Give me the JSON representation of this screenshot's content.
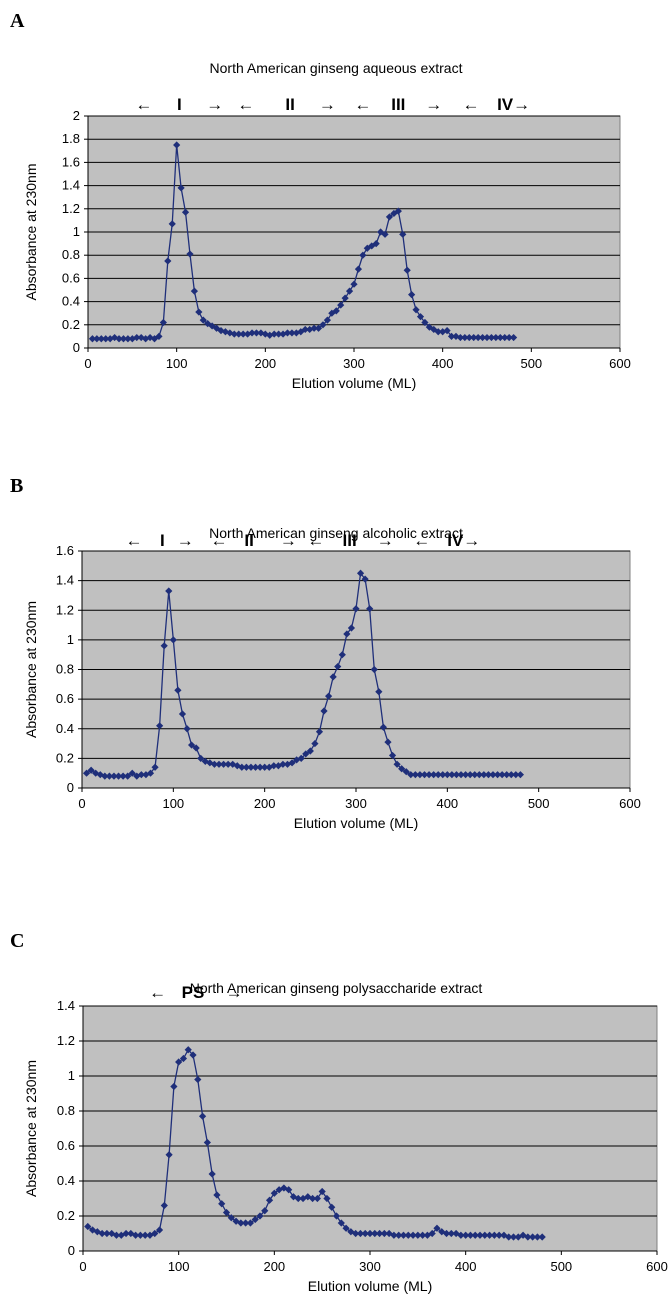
{
  "chart_data": [
    {
      "panel_letter": "A",
      "type": "line",
      "title": "North American ginseng aqueous extract",
      "xlabel": "Elution volume (ML)",
      "ylabel": "Absorbance at 230nm",
      "xlim": [
        0,
        600
      ],
      "ylim": [
        0,
        2
      ],
      "xticks": [
        "0",
        "100",
        "200",
        "300",
        "400",
        "500",
        "600"
      ],
      "yticks": [
        "0",
        "0.2",
        "0.4",
        "0.6",
        "0.8",
        "1",
        "1.2",
        "1.4",
        "1.6",
        "1.8",
        "2"
      ],
      "grid": true,
      "plot_bg": "#c0c0c0",
      "series_color": "#1f2f7a",
      "fractions": [
        {
          "text": "←",
          "x": 63
        },
        {
          "text": "I",
          "x": 103
        },
        {
          "text": "→",
          "x": 143
        },
        {
          "text": "←",
          "x": 178
        },
        {
          "text": "II",
          "x": 228
        },
        {
          "text": "→",
          "x": 270
        },
        {
          "text": "←",
          "x": 310
        },
        {
          "text": "III",
          "x": 350
        },
        {
          "text": "→",
          "x": 390
        },
        {
          "text": "←",
          "x": 432
        },
        {
          "text": "IV→",
          "x": 480
        }
      ],
      "series": [
        {
          "x": [
            5,
            10,
            15,
            20,
            25,
            30,
            35,
            40,
            45,
            50,
            55,
            60,
            65,
            70,
            75,
            80,
            85,
            90,
            95,
            100,
            105,
            110,
            115,
            120,
            125,
            130,
            135,
            140,
            145,
            150,
            155,
            160,
            165,
            170,
            175,
            180,
            185,
            190,
            195,
            200,
            205,
            210,
            215,
            220,
            225,
            230,
            235,
            240,
            245,
            250,
            255,
            260,
            265,
            270,
            275,
            280,
            285,
            290,
            295,
            300,
            305,
            310,
            315,
            320,
            325,
            330,
            335,
            340,
            345,
            350,
            355,
            360,
            365,
            370,
            375,
            380,
            385,
            390,
            395,
            400,
            405,
            410,
            415,
            420,
            425,
            430,
            435,
            440,
            445,
            450,
            455,
            460,
            465,
            470,
            475,
            480
          ],
          "y": [
            0.08,
            0.08,
            0.08,
            0.08,
            0.08,
            0.09,
            0.08,
            0.08,
            0.08,
            0.08,
            0.09,
            0.09,
            0.08,
            0.09,
            0.08,
            0.1,
            0.22,
            0.75,
            1.07,
            1.75,
            1.38,
            1.17,
            0.81,
            0.49,
            0.31,
            0.24,
            0.21,
            0.19,
            0.17,
            0.15,
            0.14,
            0.13,
            0.12,
            0.12,
            0.12,
            0.12,
            0.13,
            0.13,
            0.13,
            0.12,
            0.11,
            0.12,
            0.12,
            0.12,
            0.13,
            0.13,
            0.13,
            0.14,
            0.16,
            0.16,
            0.17,
            0.17,
            0.2,
            0.24,
            0.3,
            0.32,
            0.37,
            0.43,
            0.49,
            0.55,
            0.68,
            0.8,
            0.86,
            0.88,
            0.9,
            1.0,
            0.98,
            1.13,
            1.16,
            1.18,
            0.98,
            0.67,
            0.46,
            0.33,
            0.27,
            0.22,
            0.18,
            0.16,
            0.14,
            0.14,
            0.15,
            0.1,
            0.1,
            0.09,
            0.09,
            0.09,
            0.09,
            0.09,
            0.09,
            0.09,
            0.09,
            0.09,
            0.09,
            0.09,
            0.09,
            0.09
          ]
        }
      ]
    },
    {
      "panel_letter": "B",
      "type": "line",
      "title": "North American ginseng alcoholic extract",
      "xlabel": "Elution volume (ML)",
      "ylabel": "Absorbance at 230nm",
      "xlim": [
        0,
        600
      ],
      "ylim": [
        0,
        1.6
      ],
      "xticks": [
        "0",
        "100",
        "200",
        "300",
        "400",
        "500",
        "600"
      ],
      "yticks": [
        "0",
        "0.2",
        "0.4",
        "0.6",
        "0.8",
        "1",
        "1.2",
        "1.4",
        "1.6"
      ],
      "grid": true,
      "plot_bg": "#c0c0c0",
      "series_color": "#1f2f7a",
      "fractions": [
        {
          "text": "←",
          "x": 57
        },
        {
          "text": "I",
          "x": 88
        },
        {
          "text": "→",
          "x": 113
        },
        {
          "text": "←",
          "x": 150
        },
        {
          "text": "II",
          "x": 183
        },
        {
          "text": "→",
          "x": 226
        },
        {
          "text": "←",
          "x": 256
        },
        {
          "text": "III",
          "x": 293
        },
        {
          "text": "→",
          "x": 332
        },
        {
          "text": "←",
          "x": 372
        },
        {
          "text": "IV→",
          "x": 418
        }
      ],
      "series": [
        {
          "x": [
            5,
            10,
            15,
            20,
            25,
            30,
            35,
            40,
            45,
            50,
            55,
            60,
            65,
            70,
            75,
            80,
            85,
            90,
            95,
            100,
            105,
            110,
            115,
            120,
            125,
            130,
            135,
            140,
            145,
            150,
            155,
            160,
            165,
            170,
            175,
            180,
            185,
            190,
            195,
            200,
            205,
            210,
            215,
            220,
            225,
            230,
            235,
            240,
            245,
            250,
            255,
            260,
            265,
            270,
            275,
            280,
            285,
            290,
            295,
            300,
            305,
            310,
            315,
            320,
            325,
            330,
            335,
            340,
            345,
            350,
            355,
            360,
            365,
            370,
            375,
            380,
            385,
            390,
            395,
            400,
            405,
            410,
            415,
            420,
            425,
            430,
            435,
            440,
            445,
            450,
            455,
            460,
            465,
            470,
            475,
            480
          ],
          "y": [
            0.1,
            0.12,
            0.1,
            0.09,
            0.08,
            0.08,
            0.08,
            0.08,
            0.08,
            0.08,
            0.1,
            0.08,
            0.09,
            0.09,
            0.1,
            0.14,
            0.42,
            0.96,
            1.33,
            1.0,
            0.66,
            0.5,
            0.4,
            0.29,
            0.27,
            0.2,
            0.18,
            0.17,
            0.16,
            0.16,
            0.16,
            0.16,
            0.16,
            0.15,
            0.14,
            0.14,
            0.14,
            0.14,
            0.14,
            0.14,
            0.14,
            0.15,
            0.15,
            0.16,
            0.16,
            0.17,
            0.19,
            0.2,
            0.23,
            0.25,
            0.3,
            0.38,
            0.52,
            0.62,
            0.75,
            0.82,
            0.9,
            1.04,
            1.08,
            1.21,
            1.45,
            1.41,
            1.21,
            0.8,
            0.65,
            0.41,
            0.31,
            0.22,
            0.16,
            0.13,
            0.11,
            0.09,
            0.09,
            0.09,
            0.09,
            0.09,
            0.09,
            0.09,
            0.09,
            0.09,
            0.09,
            0.09,
            0.09,
            0.09,
            0.09,
            0.09,
            0.09,
            0.09,
            0.09,
            0.09,
            0.09,
            0.09,
            0.09,
            0.09,
            0.09,
            0.09
          ]
        }
      ]
    },
    {
      "panel_letter": "C",
      "type": "line",
      "title": "North American ginseng polysaccharide extract",
      "xlabel": "Elution volume (ML)",
      "ylabel": "Absorbance at 230nm",
      "xlim": [
        0,
        600
      ],
      "ylim": [
        0,
        1.4
      ],
      "xticks": [
        "0",
        "100",
        "200",
        "300",
        "400",
        "500",
        "600"
      ],
      "yticks": [
        "0",
        "0.2",
        "0.4",
        "0.6",
        "0.8",
        "1",
        "1.2",
        "1.4"
      ],
      "grid": true,
      "plot_bg": "#c0c0c0",
      "series_color": "#1f2f7a",
      "fractions": [
        {
          "text": "←",
          "x": 78
        },
        {
          "text": "PS",
          "x": 115
        },
        {
          "text": "→",
          "x": 158
        }
      ],
      "series": [
        {
          "x": [
            5,
            10,
            15,
            20,
            25,
            30,
            35,
            40,
            45,
            50,
            55,
            60,
            65,
            70,
            75,
            80,
            85,
            90,
            95,
            100,
            105,
            110,
            115,
            120,
            125,
            130,
            135,
            140,
            145,
            150,
            155,
            160,
            165,
            170,
            175,
            180,
            185,
            190,
            195,
            200,
            205,
            210,
            215,
            220,
            225,
            230,
            235,
            240,
            245,
            250,
            255,
            260,
            265,
            270,
            275,
            280,
            285,
            290,
            295,
            300,
            305,
            310,
            315,
            320,
            325,
            330,
            335,
            340,
            345,
            350,
            355,
            360,
            365,
            370,
            375,
            380,
            385,
            390,
            395,
            400,
            405,
            410,
            415,
            420,
            425,
            430,
            435,
            440,
            445,
            450,
            455,
            460,
            465,
            470,
            475,
            480
          ],
          "y": [
            0.14,
            0.12,
            0.11,
            0.1,
            0.1,
            0.1,
            0.09,
            0.09,
            0.1,
            0.1,
            0.09,
            0.09,
            0.09,
            0.09,
            0.1,
            0.12,
            0.26,
            0.55,
            0.94,
            1.08,
            1.1,
            1.15,
            1.12,
            0.98,
            0.77,
            0.62,
            0.44,
            0.32,
            0.27,
            0.22,
            0.19,
            0.17,
            0.16,
            0.16,
            0.16,
            0.18,
            0.2,
            0.23,
            0.29,
            0.33,
            0.35,
            0.36,
            0.35,
            0.31,
            0.3,
            0.3,
            0.31,
            0.3,
            0.3,
            0.34,
            0.3,
            0.25,
            0.2,
            0.16,
            0.13,
            0.11,
            0.1,
            0.1,
            0.1,
            0.1,
            0.1,
            0.1,
            0.1,
            0.1,
            0.09,
            0.09,
            0.09,
            0.09,
            0.09,
            0.09,
            0.09,
            0.09,
            0.1,
            0.13,
            0.11,
            0.1,
            0.1,
            0.1,
            0.09,
            0.09,
            0.09,
            0.09,
            0.09,
            0.09,
            0.09,
            0.09,
            0.09,
            0.09,
            0.08,
            0.08,
            0.08,
            0.09,
            0.08,
            0.08,
            0.08,
            0.08
          ]
        }
      ]
    }
  ]
}
